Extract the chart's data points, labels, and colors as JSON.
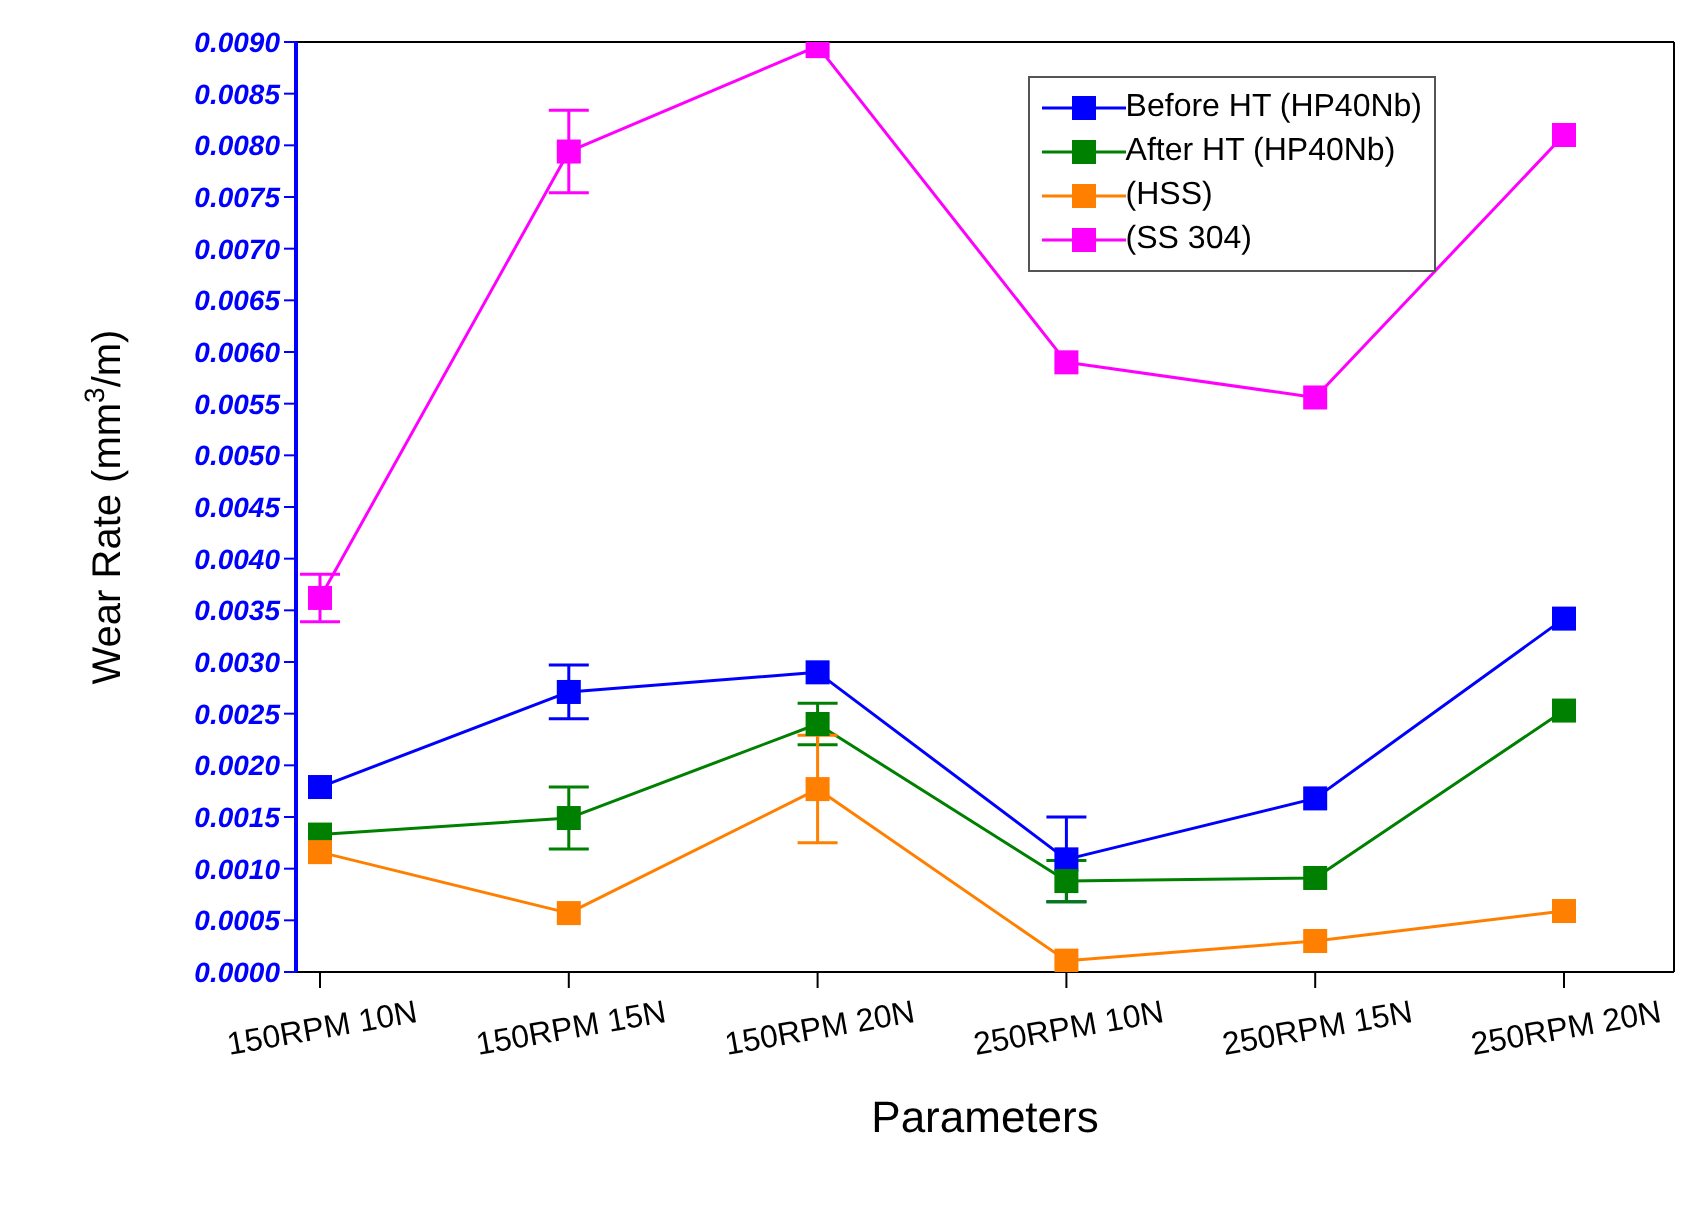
{
  "chart_data": {
    "type": "line",
    "xlabel": "Parameters",
    "ylabel": "Wear Rate (mm$^{3}$/m)",
    "categories": [
      "150RPM 10N",
      "150RPM 15N",
      "150RPM 20N",
      "250RPM 10N",
      "250RPM 15N",
      "250RPM 20N"
    ],
    "series": [
      {
        "name": "Before HT (HP40Nb)",
        "color": "#0000ff",
        "values": [
          0.00179,
          0.00271,
          0.0029,
          0.00109,
          0.00168,
          0.00342
        ],
        "errors": [
          null,
          0.00026,
          null,
          0.00041,
          null,
          null
        ]
      },
      {
        "name": "After HT (HP40Nb)",
        "color": "#008000",
        "values": [
          0.00133,
          0.00149,
          0.0024,
          0.00088,
          0.00091,
          0.00253
        ],
        "errors": [
          null,
          0.0003,
          0.0002,
          0.0002,
          null,
          null
        ]
      },
      {
        "name": "(HSS)",
        "color": "#ff8000",
        "values": [
          0.00116,
          0.00057,
          0.00177,
          0.00011,
          0.0003,
          0.00059
        ],
        "errors": [
          null,
          null,
          0.00052,
          null,
          null,
          null
        ]
      },
      {
        "name": "(SS 304)",
        "color": "#ff00ff",
        "values": [
          0.00362,
          0.00794,
          0.00896,
          0.0059,
          0.00556,
          0.0081
        ],
        "errors": [
          0.00023,
          0.0004,
          null,
          null,
          null,
          null
        ]
      }
    ],
    "ylim": [
      0,
      0.009
    ],
    "yticks": [
      {
        "value": 0,
        "label": "0.0000"
      },
      {
        "value": 0.0005,
        "label": "0.0005"
      },
      {
        "value": 0.001,
        "label": "0.0010"
      },
      {
        "value": 0.0015,
        "label": "0.0015"
      },
      {
        "value": 0.002,
        "label": "0.0020"
      },
      {
        "value": 0.0025,
        "label": "0.0025"
      },
      {
        "value": 0.003,
        "label": "0.0030"
      },
      {
        "value": 0.0035,
        "label": "0.0035"
      },
      {
        "value": 0.004,
        "label": "0.0040"
      },
      {
        "value": 0.0045,
        "label": "0.0045"
      },
      {
        "value": 0.005,
        "label": "0.0050"
      },
      {
        "value": 0.0055,
        "label": "0.0055"
      },
      {
        "value": 0.006,
        "label": "0.0060"
      },
      {
        "value": 0.0065,
        "label": "0.0065"
      },
      {
        "value": 0.007,
        "label": "0.0070"
      },
      {
        "value": 0.0075,
        "label": "0.0075"
      },
      {
        "value": 0.008,
        "label": "0.0080"
      },
      {
        "value": 0.0085,
        "label": "0.0085"
      },
      {
        "value": 0.009,
        "label": "0.0090"
      }
    ],
    "legend": "top right",
    "marker": "square",
    "grid": false
  }
}
